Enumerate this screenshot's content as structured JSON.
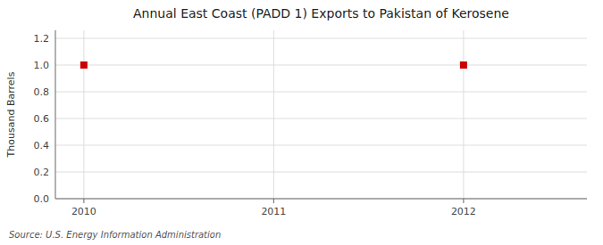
{
  "chart_data": {
    "type": "scatter",
    "title": "Annual East Coast (PADD 1) Exports to Pakistan of Kerosene",
    "y_label": "Thousand Barrels",
    "annotations": [
      "Source: U.S. Energy Information Administration"
    ],
    "x": [
      2010,
      2012
    ],
    "values": [
      1.0,
      1.0
    ],
    "color": "#CC0000",
    "marker": "square",
    "xlim": [
      2009.85,
      2012.65
    ],
    "ylim": [
      0.0,
      1.26
    ],
    "xticks": [
      2010,
      2011,
      2012
    ],
    "yticks": [
      {
        "value": 0.0,
        "label": "0.0"
      },
      0.2,
      0.4,
      0.6,
      0.8,
      {
        "value": 1.0,
        "label": "1.0"
      },
      1.2
    ],
    "grid": true
  }
}
